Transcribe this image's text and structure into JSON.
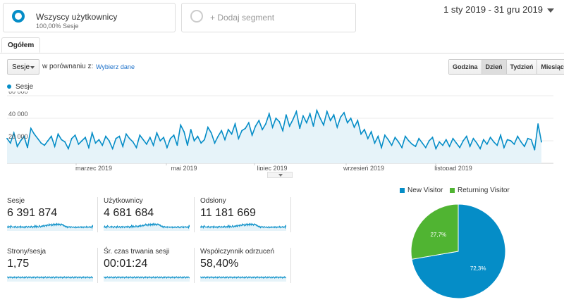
{
  "segments": {
    "primary": {
      "title": "Wszyscy użytkownicy",
      "subtitle": "100,00% Sesje"
    },
    "add": {
      "label": "+ Dodaj segment"
    }
  },
  "date_range": "1 sty 2019 - 31 gru 2019",
  "tabs": [
    {
      "label": "Ogółem"
    }
  ],
  "controls": {
    "metric_select": "Sesje",
    "compare_label": "w porównaniu z:",
    "compare_link": "Wybierz dane",
    "granularity": [
      "Godzina",
      "Dzień",
      "Tydzień",
      "Miesiąc"
    ],
    "granularity_active": "Dzień"
  },
  "colors": {
    "primary": "#058dc7",
    "returning": "#50b432",
    "fill": "#e6f3f9"
  },
  "chart_data": {
    "type": "area",
    "series": [
      {
        "name": "Sesje",
        "values": [
          22000,
          18000,
          27000,
          15000,
          20000,
          24000,
          14000,
          31000,
          26000,
          22000,
          18000,
          16000,
          20000,
          24000,
          15000,
          26000,
          21000,
          19000,
          13000,
          22000,
          25000,
          17000,
          20000,
          23000,
          14000,
          27000,
          18000,
          21000,
          16000,
          24000,
          20000,
          13000,
          22000,
          24000,
          15000,
          26000,
          22000,
          19000,
          14000,
          25000,
          21000,
          17000,
          23000,
          16000,
          27000,
          20000,
          23000,
          14000,
          22000,
          25000,
          16000,
          34000,
          28000,
          16000,
          30000,
          20000,
          24000,
          18000,
          21000,
          32000,
          27000,
          18000,
          24000,
          29000,
          21000,
          30000,
          26000,
          35000,
          22000,
          29000,
          31000,
          36000,
          25000,
          33000,
          38000,
          30000,
          35000,
          44000,
          32000,
          40000,
          37000,
          29000,
          43000,
          33000,
          39000,
          46000,
          31000,
          42000,
          36000,
          44000,
          33000,
          47000,
          40000,
          34000,
          46000,
          38000,
          43000,
          32000,
          41000,
          45000,
          36000,
          40000,
          32000,
          38000,
          26000,
          30000,
          22000,
          28000,
          18000,
          24000,
          14000,
          25000,
          21000,
          16000,
          23000,
          19000,
          14000,
          24000,
          20000,
          17000,
          15000,
          22000,
          18000,
          14000,
          20000,
          23000,
          13000,
          19000,
          16000,
          21000,
          15000,
          22000,
          18000,
          14000,
          20000,
          24000,
          15000,
          22000,
          18000,
          13000,
          21000,
          17000,
          23000,
          19000,
          16000,
          25000,
          14000,
          21000,
          20000,
          17000,
          24000,
          19000,
          15000,
          22000,
          21000,
          12000,
          35000,
          19000
        ]
      }
    ],
    "ylabel_ticks": [
      "20 000",
      "40 000",
      "60 000"
    ],
    "ylim": [
      0,
      60000
    ],
    "x_tick_labels": [
      "marzec 2019",
      "maj 2019",
      "lipiec 2019",
      "wrzesień 2019",
      "listopad 2019"
    ]
  },
  "metrics": [
    {
      "label": "Sesje",
      "value": "6 391 874"
    },
    {
      "label": "Użytkownicy",
      "value": "4 681 684"
    },
    {
      "label": "Odsłony",
      "value": "11 181 669"
    },
    {
      "label": "Strony/sesja",
      "value": "1,75"
    },
    {
      "label": "Śr. czas trwania sesji",
      "value": "00:01:24"
    },
    {
      "label": "Współczynnik odrzuceń",
      "value": "58,40%"
    }
  ],
  "pie": {
    "legend": [
      {
        "label": "New Visitor"
      },
      {
        "label": "Returning Visitor"
      }
    ],
    "slices": [
      {
        "label": "72,3%",
        "value": 72.3
      },
      {
        "label": "27,7%",
        "value": 27.7
      }
    ]
  }
}
